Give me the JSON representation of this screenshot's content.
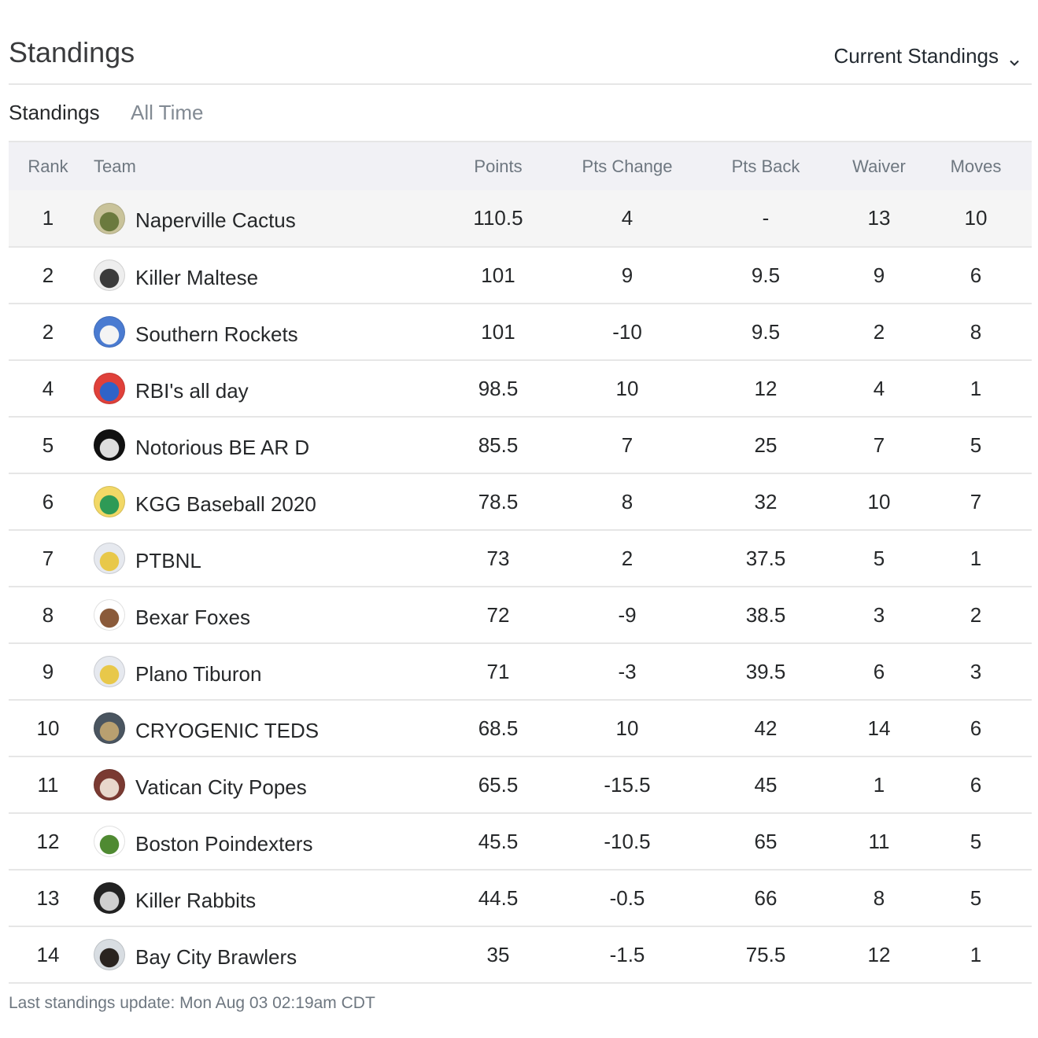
{
  "page_title": "Standings",
  "view_select": {
    "label": "Current Standings",
    "icon": "chevron-down-icon"
  },
  "tabs": [
    {
      "label": "Standings",
      "active": true
    },
    {
      "label": "All Time",
      "active": false
    }
  ],
  "table": {
    "headers": {
      "rank": "Rank",
      "team": "Team",
      "points": "Points",
      "pts_change": "Pts Change",
      "pts_back": "Pts Back",
      "waiver": "Waiver",
      "moves": "Moves"
    },
    "rows": [
      {
        "rank": "1",
        "team": "Naperville Cactus",
        "points": "110.5",
        "pts_change": "4",
        "change_dir": "pos",
        "pts_back": "-",
        "waiver": "13",
        "moves": "10",
        "avatar_colors": [
          "#c9c39a",
          "#6b7a3e"
        ]
      },
      {
        "rank": "2",
        "team": "Killer Maltese",
        "points": "101",
        "pts_change": "9",
        "change_dir": "pos",
        "pts_back": "9.5",
        "waiver": "9",
        "moves": "6",
        "avatar_colors": [
          "#eeeeee",
          "#3b3b3b"
        ]
      },
      {
        "rank": "2",
        "team": "Southern Rockets",
        "points": "101",
        "pts_change": "-10",
        "change_dir": "neg",
        "pts_back": "9.5",
        "waiver": "2",
        "moves": "8",
        "avatar_colors": [
          "#4a7bd1",
          "#f4f4f4"
        ]
      },
      {
        "rank": "4",
        "team": "RBI's all day",
        "points": "98.5",
        "pts_change": "10",
        "change_dir": "pos",
        "pts_back": "12",
        "waiver": "4",
        "moves": "1",
        "avatar_colors": [
          "#e0403a",
          "#2f63c8"
        ]
      },
      {
        "rank": "5",
        "team": "Notorious BE AR D",
        "points": "85.5",
        "pts_change": "7",
        "change_dir": "pos",
        "pts_back": "25",
        "waiver": "7",
        "moves": "5",
        "avatar_colors": [
          "#111111",
          "#dddddd"
        ]
      },
      {
        "rank": "6",
        "team": "KGG Baseball 2020",
        "points": "78.5",
        "pts_change": "8",
        "change_dir": "pos",
        "pts_back": "32",
        "waiver": "10",
        "moves": "7",
        "avatar_colors": [
          "#f2d866",
          "#2e9a56"
        ]
      },
      {
        "rank": "7",
        "team": "PTBNL",
        "points": "73",
        "pts_change": "2",
        "change_dir": "pos",
        "pts_back": "37.5",
        "waiver": "5",
        "moves": "1",
        "avatar_colors": [
          "#e6e9ef",
          "#e8c84a"
        ]
      },
      {
        "rank": "8",
        "team": "Bexar Foxes",
        "points": "72",
        "pts_change": "-9",
        "change_dir": "neg",
        "pts_back": "38.5",
        "waiver": "3",
        "moves": "2",
        "avatar_colors": [
          "#ffffff",
          "#8a5a3a"
        ]
      },
      {
        "rank": "9",
        "team": "Plano Tiburon",
        "points": "71",
        "pts_change": "-3",
        "change_dir": "neg",
        "pts_back": "39.5",
        "waiver": "6",
        "moves": "3",
        "avatar_colors": [
          "#e6e9ef",
          "#e8c84a"
        ]
      },
      {
        "rank": "10",
        "team": "CRYOGENIC TEDS",
        "points": "68.5",
        "pts_change": "10",
        "change_dir": "pos",
        "pts_back": "42",
        "waiver": "14",
        "moves": "6",
        "avatar_colors": [
          "#4a5560",
          "#b9a070"
        ]
      },
      {
        "rank": "11",
        "team": "Vatican City Popes",
        "points": "65.5",
        "pts_change": "-15.5",
        "change_dir": "neg",
        "pts_back": "45",
        "waiver": "1",
        "moves": "6",
        "avatar_colors": [
          "#7a3a32",
          "#e8d8cc"
        ]
      },
      {
        "rank": "12",
        "team": "Boston Poindexters",
        "points": "45.5",
        "pts_change": "-10.5",
        "change_dir": "neg",
        "pts_back": "65",
        "waiver": "11",
        "moves": "5",
        "avatar_colors": [
          "#ffffff",
          "#4f8a32"
        ]
      },
      {
        "rank": "13",
        "team": "Killer Rabbits",
        "points": "44.5",
        "pts_change": "-0.5",
        "change_dir": "neg",
        "pts_back": "66",
        "waiver": "8",
        "moves": "5",
        "avatar_colors": [
          "#222222",
          "#cfcfcf"
        ]
      },
      {
        "rank": "14",
        "team": "Bay City Brawlers",
        "points": "35",
        "pts_change": "-1.5",
        "change_dir": "neg",
        "pts_back": "75.5",
        "waiver": "12",
        "moves": "1",
        "avatar_colors": [
          "#d8dde2",
          "#2a2420"
        ]
      }
    ]
  },
  "footer": {
    "text": "Last standings update: Mon Aug 03 02:19am CDT"
  }
}
